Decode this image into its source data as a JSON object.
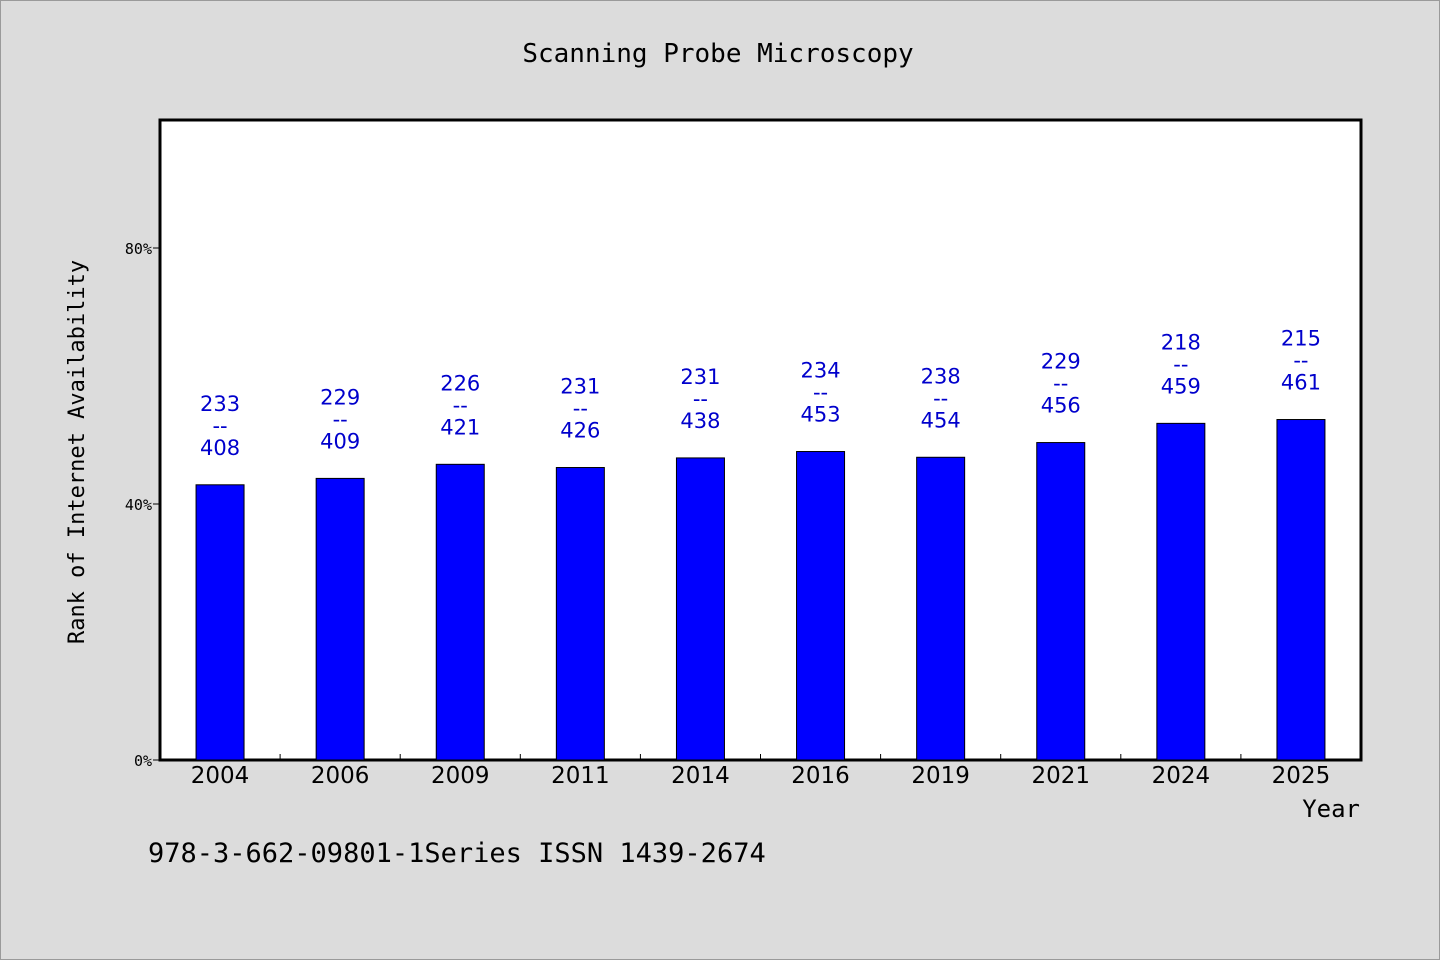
{
  "chart_data": {
    "type": "bar",
    "title": "Scanning Probe Microscopy",
    "xlabel": "Year",
    "ylabel": "Rank of Internet Availability",
    "ylim": [
      0,
      100
    ],
    "yticks": [
      0,
      40,
      80
    ],
    "ytick_labels": [
      "0%",
      "40%",
      "80%"
    ],
    "categories": [
      "2004",
      "2006",
      "2009",
      "2011",
      "2014",
      "2016",
      "2019",
      "2021",
      "2024",
      "2025"
    ],
    "values": [
      43.0,
      44.0,
      46.2,
      45.7,
      47.2,
      48.2,
      47.3,
      49.6,
      52.6,
      53.2
    ],
    "bar_labels": [
      {
        "top": "233",
        "sep": "--",
        "bottom": "408"
      },
      {
        "top": "229",
        "sep": "--",
        "bottom": "409"
      },
      {
        "top": "226",
        "sep": "--",
        "bottom": "421"
      },
      {
        "top": "231",
        "sep": "--",
        "bottom": "426"
      },
      {
        "top": "231",
        "sep": "--",
        "bottom": "438"
      },
      {
        "top": "234",
        "sep": "--",
        "bottom": "453"
      },
      {
        "top": "238",
        "sep": "--",
        "bottom": "454"
      },
      {
        "top": "229",
        "sep": "--",
        "bottom": "456"
      },
      {
        "top": "218",
        "sep": "--",
        "bottom": "459"
      },
      {
        "top": "215",
        "sep": "--",
        "bottom": "461"
      }
    ],
    "bar_color": "#0000ff",
    "label_color": "#0000cc",
    "grid": false,
    "legend": "none"
  },
  "footer": {
    "text": "978-3-662-09801-1Series ISSN 1439-2674"
  }
}
